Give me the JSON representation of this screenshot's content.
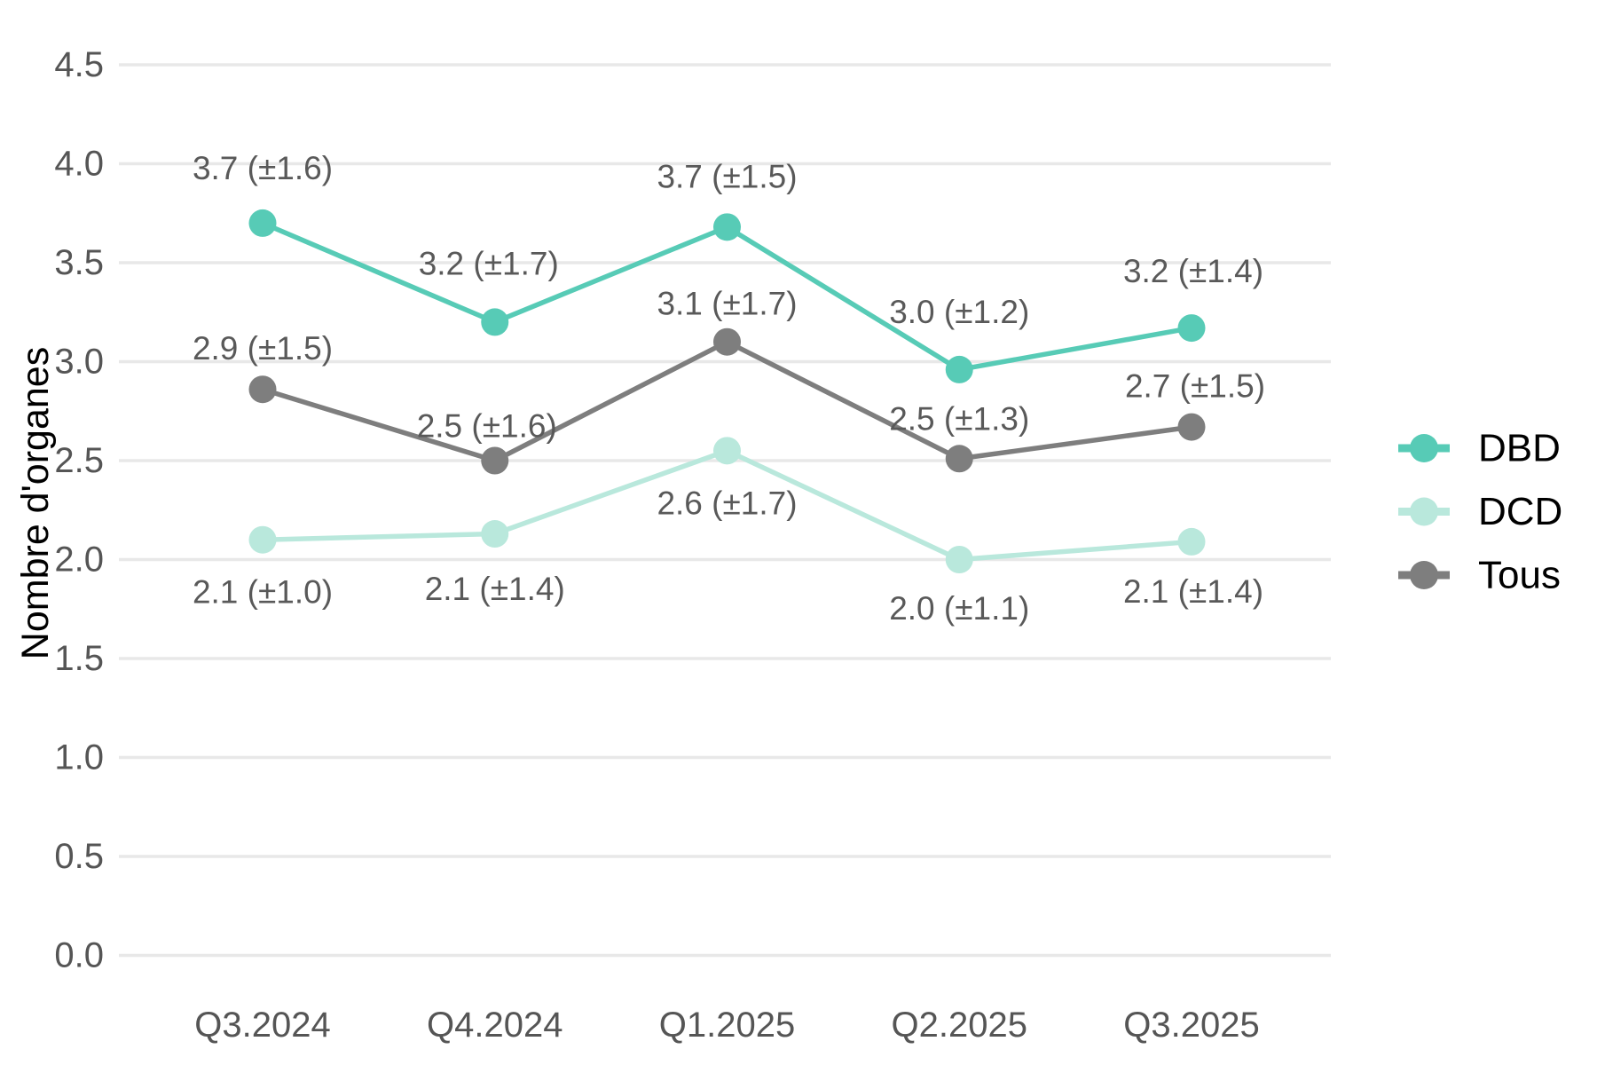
{
  "chart_data": {
    "type": "line",
    "title": "",
    "xlabel": "",
    "ylabel": "Nombre d'organes",
    "categories": [
      "Q3.2024",
      "Q4.2024",
      "Q1.2025",
      "Q2.2025",
      "Q3.2025"
    ],
    "ylim": [
      0.0,
      4.5
    ],
    "ytick_step": 0.5,
    "ytick_labels": [
      "0.0",
      "0.5",
      "1.0",
      "1.5",
      "2.0",
      "2.5",
      "3.0",
      "3.5",
      "4.0",
      "4.5"
    ],
    "grid": "horizontal-only",
    "legend_position": "right",
    "legend": [
      "DBD",
      "DCD",
      "Tous"
    ],
    "colors": {
      "background": "#FFFFFF",
      "grid": "#E8E8E8",
      "tick_text": "#555555",
      "data_label_text": "#595959",
      "axis_title_text": "#000000",
      "legend_text": "#000000"
    },
    "series": [
      {
        "name": "DBD",
        "color": "#57CBB6",
        "values": [
          3.7,
          3.2,
          3.7,
          3.0,
          3.2
        ],
        "sd": [
          1.6,
          1.7,
          1.5,
          1.2,
          1.4
        ],
        "point_labels": [
          "3.7 (±1.6)",
          "3.2 (±1.7)",
          "3.7 (±1.5)",
          "3.0 (±1.2)",
          "3.2 (±1.4)"
        ],
        "label_side": "above",
        "plot_values": [
          3.7,
          3.2,
          3.68,
          2.96,
          3.17
        ],
        "label_dx": [
          0,
          -7,
          0,
          0,
          2
        ],
        "label_dy": [
          -62,
          -66,
          -57,
          -65,
          -64
        ]
      },
      {
        "name": "DCD",
        "color": "#B9E8DC",
        "values": [
          2.1,
          2.1,
          2.6,
          2.0,
          2.1
        ],
        "sd": [
          1.0,
          1.4,
          1.7,
          1.1,
          1.4
        ],
        "point_labels": [
          "2.1 (±1.0)",
          "2.1 (±1.4)",
          "2.6 (±1.7)",
          "2.0 (±1.1)",
          "2.1 (±1.4)"
        ],
        "label_side": "below",
        "plot_values": [
          2.1,
          2.13,
          2.55,
          2.0,
          2.09
        ],
        "label_dx": [
          0,
          0,
          0,
          0,
          2
        ],
        "label_dy": [
          59,
          62,
          59,
          55,
          56
        ]
      },
      {
        "name": "Tous",
        "color": "#7E7E7E",
        "values": [
          2.9,
          2.5,
          3.1,
          2.5,
          2.7
        ],
        "sd": [
          1.5,
          1.6,
          1.7,
          1.3,
          1.5
        ],
        "point_labels": [
          "2.9 (±1.5)",
          "2.5 (±1.6)",
          "3.1 (±1.7)",
          "2.5 (±1.3)",
          "2.7 (±1.5)"
        ],
        "label_side": "above",
        "plot_values": [
          2.86,
          2.5,
          3.1,
          2.51,
          2.67
        ],
        "label_dx": [
          0,
          -9,
          0,
          0,
          4
        ],
        "label_dy": [
          -46,
          -39,
          -43,
          -45,
          -46
        ]
      }
    ]
  }
}
